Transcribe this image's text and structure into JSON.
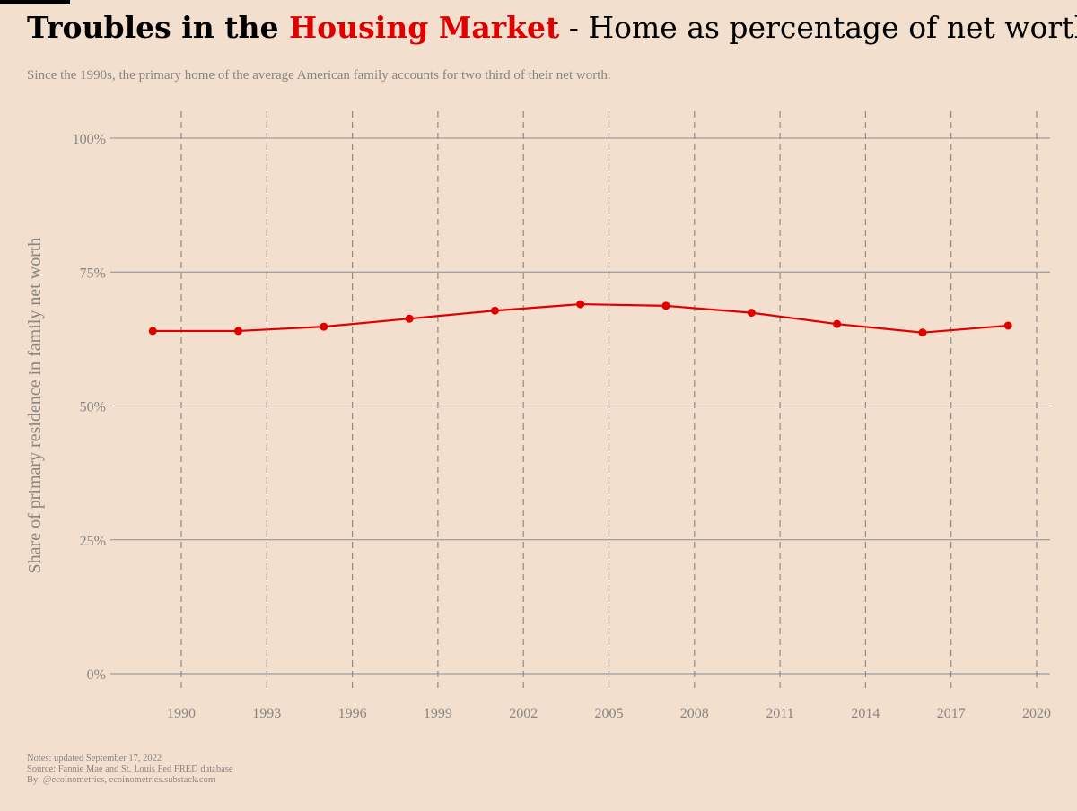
{
  "header": {
    "title_part1": "Troubles in the ",
    "title_highlight": "Housing Market",
    "title_part2": " - Home as percentage of net worth",
    "subtitle": "Since the 1990s, the primary home of the average American family accounts for two third of their net worth."
  },
  "footer": {
    "notes": "Notes: updated September 17, 2022",
    "source": "Source: Fannie Mae and St. Louis Fed FRED database",
    "by": "By: @ecoinometrics, ecoinometrics.substack.com"
  },
  "colors": {
    "background": "#f2dfce",
    "line": "#e00000",
    "grid": "#8c8c8c",
    "text_muted": "#8a8580"
  },
  "chart_data": {
    "type": "line",
    "title": "Troubles in the Housing Market - Home as percentage of net worth",
    "subtitle": "Since the 1990s, the primary home of the average American family accounts for two third of their net worth.",
    "xlabel": "",
    "ylabel": "Share of primary residence in family net worth",
    "x": [
      1989,
      1992,
      1995,
      1998,
      2001,
      2004,
      2007,
      2010,
      2013,
      2016,
      2019
    ],
    "series": [
      {
        "values": [
          64.0,
          64.0,
          64.8,
          66.3,
          67.8,
          69.0,
          68.7,
          67.4,
          65.3,
          63.7,
          65.0
        ]
      }
    ],
    "xticks": [
      1990,
      1993,
      1996,
      1999,
      2002,
      2005,
      2008,
      2011,
      2014,
      2017,
      2020
    ],
    "xtick_labels": [
      "1990",
      "1993",
      "1996",
      "1999",
      "2002",
      "2005",
      "2008",
      "2011",
      "2014",
      "2017",
      "2020"
    ],
    "yticks": [
      0,
      25,
      50,
      75,
      100
    ],
    "ytick_labels": [
      "0%",
      "25%",
      "50%",
      "75%",
      "100%"
    ],
    "xlim": [
      1988,
      2020.5
    ],
    "ylim": [
      0,
      100
    ],
    "grid": true,
    "legend": "none"
  }
}
